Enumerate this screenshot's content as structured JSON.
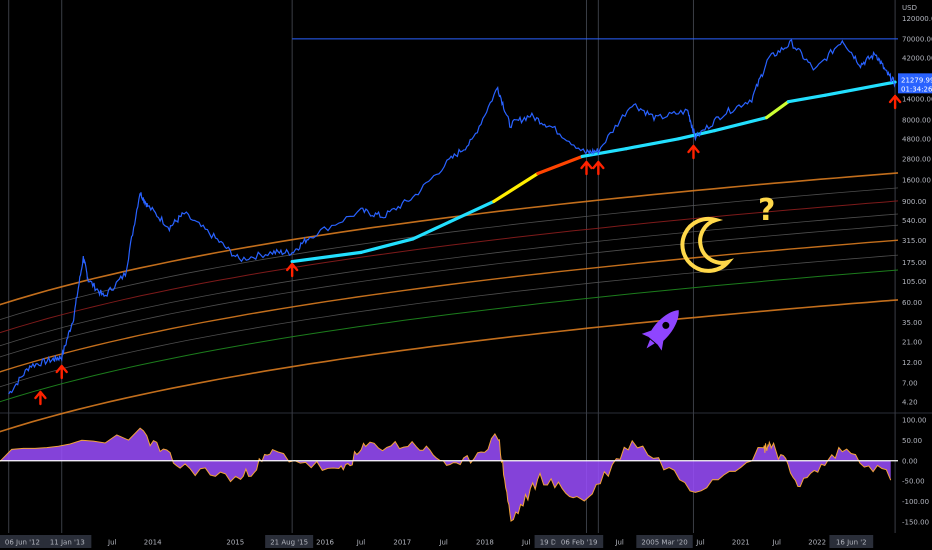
{
  "chart_data": {
    "type": "line",
    "title": "",
    "price_axis": {
      "currency": "USD",
      "scale": "log",
      "ticks": [
        "120000.00",
        "70000.00",
        "42000.00",
        "14000.00",
        "8000.00",
        "4800.00",
        "2800.00",
        "1600.00",
        "900.00",
        "540.00",
        "315.00",
        "175.00",
        "105.00",
        "60.00",
        "35.00",
        "21.00",
        "12.00",
        "7.00",
        "4.20"
      ],
      "tick_values": [
        120000,
        70000,
        42000,
        14000,
        8000,
        4800,
        2800,
        1600,
        900,
        540,
        315,
        175,
        105,
        60,
        35,
        21,
        12,
        7,
        4.2
      ],
      "last_price_label": "21279.99",
      "last_price_timer": "01:34:26",
      "last_price": 21279.99
    },
    "oscillator_axis": {
      "ticks": [
        "100.00",
        "50.00",
        "0.00",
        "-50.00",
        "-100.00",
        "-150.00"
      ],
      "tick_values": [
        100,
        50,
        0,
        -50,
        -100,
        -150
      ]
    },
    "time_axis": {
      "labels": [
        "06 Jun '12",
        "11 Jan '13",
        "Jul",
        "2014",
        "2015",
        "21 Aug '15",
        "2016",
        "Jul",
        "2017",
        "Jul",
        "2018",
        "Jul",
        "19 Dec '18",
        "06 Feb '19",
        "Jul",
        "2005 Mar '20",
        "Jul",
        "2021",
        "Jul",
        "2022",
        "16 Jun '2"
      ],
      "label_positions": [
        0.025,
        0.075,
        0.125,
        0.17,
        0.262,
        0.322,
        0.362,
        0.402,
        0.448,
        0.494,
        0.54,
        0.586,
        0.622,
        0.645,
        0.69,
        0.74,
        0.78,
        0.825,
        0.865,
        0.91,
        0.948
      ],
      "highlighted": [
        "06 Jun '12",
        "11 Jan '13",
        "21 Aug '15",
        "19 Dec '18",
        "06 Feb '19",
        "2005 Mar '20",
        "16 Jun '2"
      ]
    },
    "series": [
      {
        "name": "BTCUSD",
        "color": "#2962ff",
        "points": [
          [
            "2012-06-06",
            5.2
          ],
          [
            "2012-09-01",
            11
          ],
          [
            "2012-12-01",
            13
          ],
          [
            "2013-01-11",
            14
          ],
          [
            "2013-03-01",
            40
          ],
          [
            "2013-04-10",
            200
          ],
          [
            "2013-05-01",
            110
          ],
          [
            "2013-07-05",
            70
          ],
          [
            "2013-10-01",
            130
          ],
          [
            "2013-11-30",
            1150
          ],
          [
            "2014-01-01",
            800
          ],
          [
            "2014-04-01",
            450
          ],
          [
            "2014-06-01",
            650
          ],
          [
            "2014-10-01",
            350
          ],
          [
            "2015-01-14",
            190
          ],
          [
            "2015-06-01",
            230
          ],
          [
            "2015-08-21",
            230
          ],
          [
            "2015-11-01",
            350
          ],
          [
            "2016-06-01",
            700
          ],
          [
            "2016-09-01",
            600
          ],
          [
            "2017-01-01",
            1000
          ],
          [
            "2017-06-01",
            2700
          ],
          [
            "2017-09-01",
            4500
          ],
          [
            "2017-12-17",
            19000
          ],
          [
            "2018-02-05",
            7000
          ],
          [
            "2018-05-01",
            9000
          ],
          [
            "2018-08-01",
            6500
          ],
          [
            "2018-12-15",
            3300
          ],
          [
            "2019-02-06",
            3500
          ],
          [
            "2019-06-26",
            12500
          ],
          [
            "2019-10-01",
            8300
          ],
          [
            "2020-02-10",
            10200
          ],
          [
            "2020-03-13",
            5000
          ],
          [
            "2020-07-01",
            9200
          ],
          [
            "2020-11-01",
            14000
          ],
          [
            "2021-01-08",
            41000
          ],
          [
            "2021-04-14",
            63000
          ],
          [
            "2021-07-20",
            30000
          ],
          [
            "2021-11-10",
            68000
          ],
          [
            "2022-01-24",
            35000
          ],
          [
            "2022-03-28",
            47000
          ],
          [
            "2022-05-12",
            28000
          ],
          [
            "2022-06-16",
            21280
          ]
        ]
      },
      {
        "name": "200-week moving average",
        "color_scale": [
          "#00d4ff",
          "#00ffcc",
          "#ffee00",
          "#ff2200"
        ],
        "points": [
          [
            "2015-08-21",
            180
          ],
          [
            "2016-06-01",
            230
          ],
          [
            "2017-01-01",
            330
          ],
          [
            "2017-06-01",
            520
          ],
          [
            "2017-12-01",
            900
          ],
          [
            "2018-06-01",
            1900
          ],
          [
            "2018-12-01",
            3000
          ],
          [
            "2019-06-01",
            3700
          ],
          [
            "2020-01-01",
            4800
          ],
          [
            "2020-06-01",
            6000
          ],
          [
            "2021-01-01",
            8500
          ],
          [
            "2021-04-01",
            13000
          ],
          [
            "2021-09-01",
            15500
          ],
          [
            "2022-06-16",
            22000
          ]
        ]
      }
    ],
    "bands": {
      "orange": "#d77a1f",
      "red": "#8b1d1d",
      "grey": "#555555",
      "green": "#1f8a1f"
    },
    "oscillator": {
      "color_fill": "#9b4dff",
      "color_line": "#f2a33a",
      "zero_line": "#ffffff",
      "peaks": [
        [
          "2013-12-01",
          70
        ],
        [
          "2014-05-15",
          -15
        ],
        [
          "2015-01-20",
          -45
        ],
        [
          "2015-06-01",
          20
        ],
        [
          "2016-03-01",
          -30
        ],
        [
          "2016-06-20",
          35
        ],
        [
          "2017-01-15",
          40
        ],
        [
          "2017-07-01",
          -20
        ],
        [
          "2017-12-20",
          60
        ],
        [
          "2018-02-10",
          -150
        ],
        [
          "2018-06-10",
          -40
        ],
        [
          "2018-12-10",
          -100
        ],
        [
          "2019-06-26",
          50
        ],
        [
          "2020-03-13",
          -70
        ],
        [
          "2020-12-20",
          30
        ],
        [
          "2021-01-20",
          45
        ],
        [
          "2021-05-20",
          -60
        ],
        [
          "2021-11-10",
          30
        ],
        [
          "2022-06-16",
          -45
        ]
      ]
    },
    "annotations": {
      "arrow_color": "#ff2200",
      "buy_signals": [
        "2012-10-15",
        "2013-01-11",
        "2015-08-21",
        "2018-12-19",
        "2019-02-06",
        "2020-03-05",
        "2022-06-16"
      ],
      "question_mark": "?",
      "question_color": "#ffd84a",
      "moon_color": "#ffd84a",
      "rocket_color": "#8f45ff"
    },
    "price_line": {
      "label": "70000.00",
      "value": 70000,
      "color": "#2962ff"
    }
  }
}
